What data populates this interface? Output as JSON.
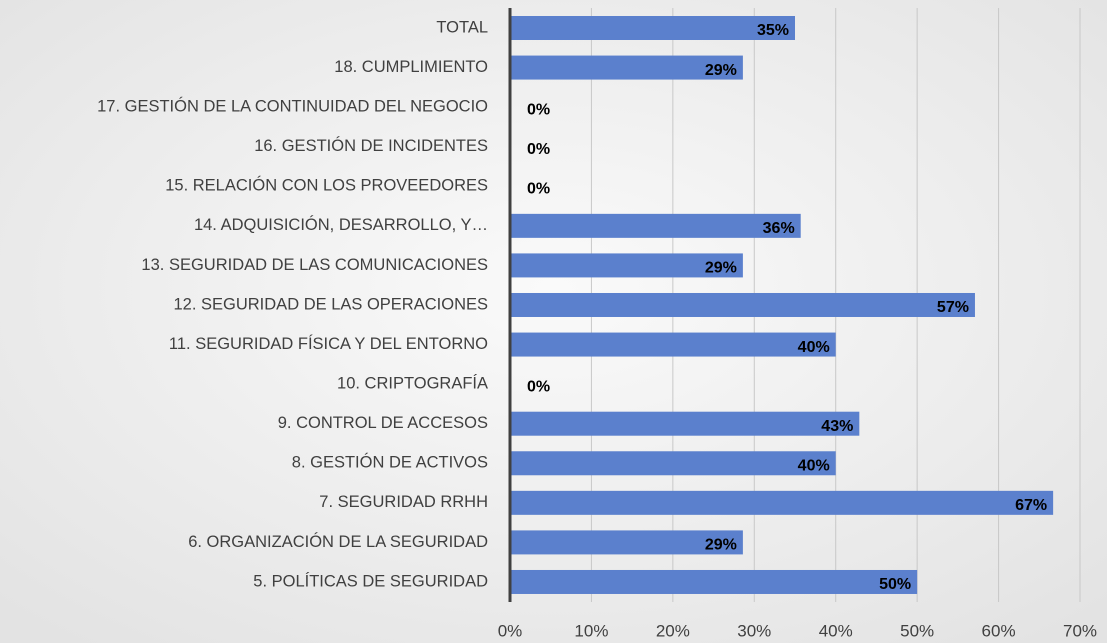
{
  "chart_data": {
    "type": "bar",
    "orientation": "horizontal",
    "categories": [
      "TOTAL",
      "18. CUMPLIMIENTO",
      "17. GESTIÓN DE LA CONTINUIDAD DEL NEGOCIO",
      "16. GESTIÓN DE INCIDENTES",
      "15. RELACIÓN CON LOS PROVEEDORES",
      "14. ADQUISICIÓN, DESARROLLO, Y…",
      "13. SEGURIDAD DE LAS COMUNICACIONES",
      "12. SEGURIDAD DE LAS OPERACIONES",
      "11. SEGURIDAD FÍSICA Y DEL ENTORNO",
      "10. CRIPTOGRAFÍA",
      "9. CONTROL DE ACCESOS",
      "8. GESTIÓN DE ACTIVOS",
      "7. SEGURIDAD RRHH",
      "6. ORGANIZACIÓN DE LA SEGURIDAD",
      "5. POLÍTICAS DE SEGURIDAD"
    ],
    "values": [
      35,
      28.6,
      0,
      0,
      0,
      35.7,
      28.6,
      57.1,
      40,
      0,
      42.9,
      40,
      66.7,
      28.6,
      50
    ],
    "value_labels": [
      "35%",
      "29%",
      "0%",
      "0%",
      "0%",
      "36%",
      "29%",
      "57%",
      "40%",
      "0%",
      "43%",
      "40%",
      "67%",
      "29%",
      "50%"
    ],
    "color": "#5b80cd",
    "xlim": [
      0,
      70
    ],
    "xticks": [
      {
        "value": 0,
        "label": "0%"
      },
      {
        "value": 10,
        "label": "10%"
      },
      {
        "value": 20,
        "label": "20%"
      },
      {
        "value": 30,
        "label": "30%"
      },
      {
        "value": 40,
        "label": "40%"
      },
      {
        "value": 50,
        "label": "50%"
      },
      {
        "value": 60,
        "label": "60%"
      },
      {
        "value": 70,
        "label": "70%"
      }
    ],
    "grid": true
  }
}
